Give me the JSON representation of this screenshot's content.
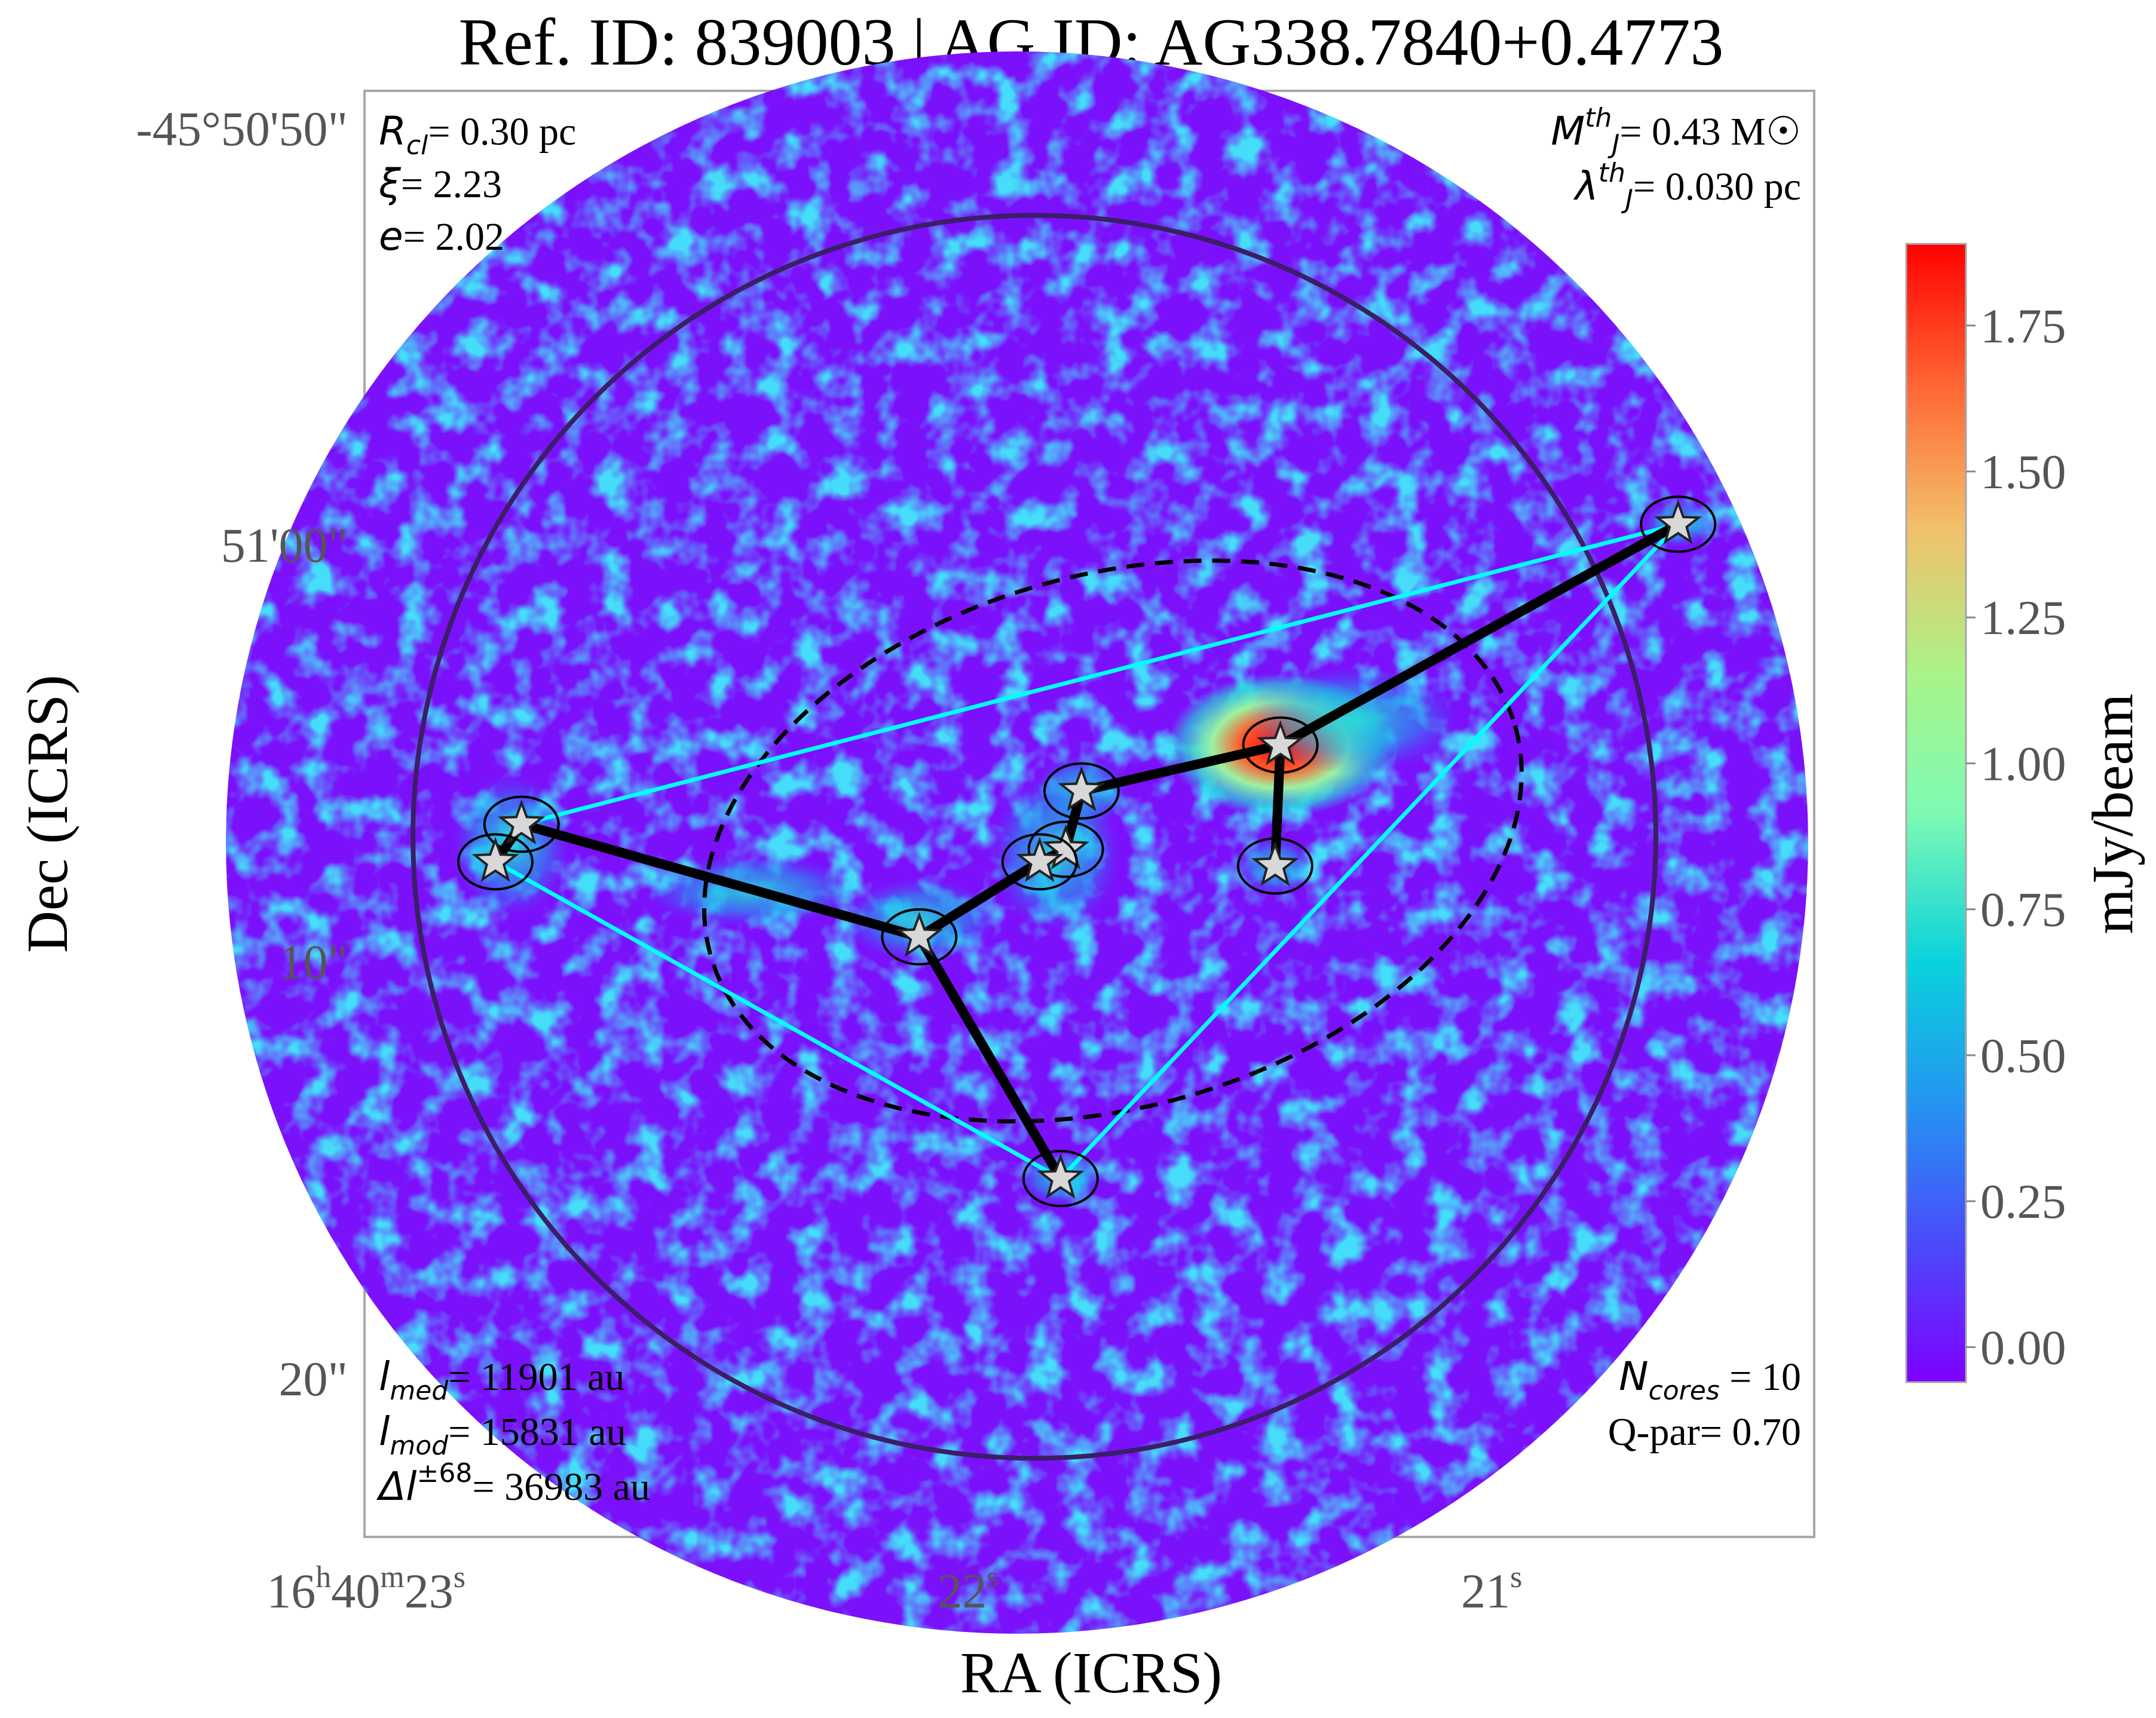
{
  "chart_data": {
    "type": "heatmap",
    "title": "Ref. ID: 839003 | AG ID: AG338.7840+0.4773",
    "xlabel": "RA (ICRS)",
    "ylabel": "Dec (ICRS)",
    "colorbar": {
      "label": "mJy/beam",
      "range": [
        -0.06,
        1.89
      ],
      "ticks": [
        "0.00",
        "0.25",
        "0.50",
        "0.75",
        "1.00",
        "1.25",
        "1.50",
        "1.75"
      ],
      "tick_values": [
        0.0,
        0.25,
        0.5,
        0.75,
        1.0,
        1.25,
        1.5,
        1.75
      ],
      "colormap": "rainbow"
    },
    "x_ticks": [
      {
        "h": "16",
        "m": "40",
        "s": "23",
        "value_s": 23.0
      },
      {
        "s": "22",
        "value_s": 22.0
      },
      {
        "s": "21",
        "value_s": 21.0
      }
    ],
    "x_range_s": [
      23.14,
      20.37
    ],
    "y_ticks": [
      {
        "label": "-45°50'50\"",
        "value_arcsec": 50
      },
      {
        "label": "51'00\"",
        "value_arcsec": 60
      },
      {
        "label": "10\"",
        "value_arcsec": 70
      },
      {
        "label": "20\"",
        "value_arcsec": 80
      }
    ],
    "y_range_arcsec": [
      49.1,
      83.8
    ],
    "annotations": {
      "top_left": [
        {
          "sym": "R",
          "sub": "cl",
          "text": "= 0.30 pc"
        },
        {
          "sym": "ξ",
          "text": "= 2.23"
        },
        {
          "sym": "e",
          "text": "= 2.02"
        }
      ],
      "top_right": [
        {
          "sym": "M",
          "sub": "J",
          "sup": "th",
          "text": "= 0.43 M☉"
        },
        {
          "sym": "λ",
          "sub": "J",
          "sup": "th",
          "text": "= 0.030 pc"
        }
      ],
      "bottom_left": [
        {
          "sym": "l",
          "sub": "med",
          "text": "= 11901 au"
        },
        {
          "sym": "l",
          "sub": "mod",
          "text": "= 15831 au"
        },
        {
          "sym": "Δl",
          "sup": "±68",
          "text": "= 36983 au"
        }
      ],
      "bottom_right": [
        {
          "sym": "N",
          "sub": "cores",
          "text": " = 10"
        },
        {
          "text": "Q-par= 0.70"
        }
      ]
    },
    "cores": [
      {
        "id": 1,
        "ra_s": 20.63,
        "dec_arcsec": 59.5
      },
      {
        "id": 2,
        "ra_s": 21.39,
        "dec_arcsec": 64.8
      },
      {
        "id": 3,
        "ra_s": 21.4,
        "dec_arcsec": 67.7
      },
      {
        "id": 4,
        "ra_s": 21.77,
        "dec_arcsec": 65.9
      },
      {
        "id": 5,
        "ra_s": 21.8,
        "dec_arcsec": 67.3
      },
      {
        "id": 6,
        "ra_s": 21.85,
        "dec_arcsec": 67.6
      },
      {
        "id": 7,
        "ra_s": 22.08,
        "dec_arcsec": 69.4
      },
      {
        "id": 8,
        "ra_s": 22.84,
        "dec_arcsec": 66.7
      },
      {
        "id": 9,
        "ra_s": 22.89,
        "dec_arcsec": 67.6
      },
      {
        "id": 10,
        "ra_s": 21.81,
        "dec_arcsec": 75.2
      }
    ],
    "mst_edges": [
      [
        1,
        2
      ],
      [
        2,
        3
      ],
      [
        2,
        4
      ],
      [
        4,
        5
      ],
      [
        5,
        6
      ],
      [
        6,
        7
      ],
      [
        7,
        8
      ],
      [
        7,
        10
      ],
      [
        8,
        9
      ]
    ],
    "convex_hull": [
      1,
      8,
      9,
      10
    ],
    "cluster_ellipse": {
      "center_ra_s": 21.71,
      "center_dec_arcsec": 67.1,
      "style": "dashed"
    },
    "field_circle": {
      "center_ra_s": 21.86,
      "center_dec_arcsec": 67.0
    }
  }
}
